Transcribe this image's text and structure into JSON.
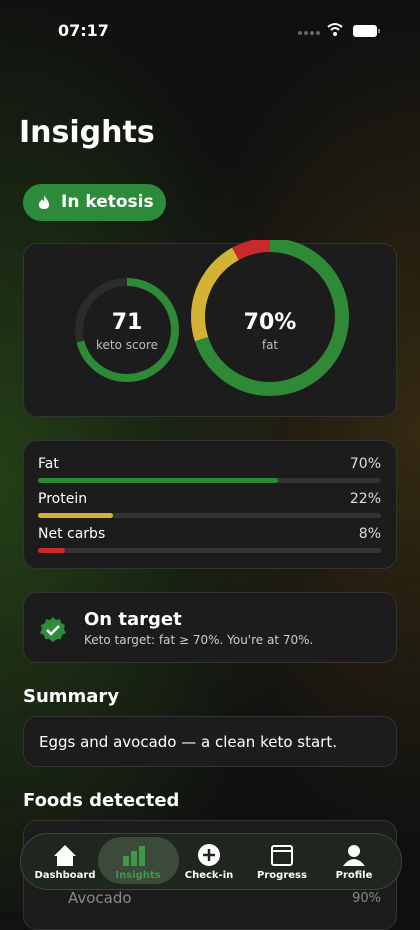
{
  "status_bar": {
    "time": "07:17"
  },
  "header": {
    "title": "Insights",
    "badge": "In ketosis"
  },
  "score": {
    "value": 71,
    "label": "keto score"
  },
  "fat_ring": {
    "value_label": "70%",
    "label": "fat"
  },
  "macros": [
    {
      "name": "Fat",
      "value": 70,
      "label": "70%",
      "color": "#2f8a37"
    },
    {
      "name": "Protein",
      "value": 22,
      "label": "22%",
      "color": "#d4b234"
    },
    {
      "name": "Net carbs",
      "value": 8,
      "label": "8%",
      "color": "#c8292a"
    }
  ],
  "target": {
    "title": "On target",
    "text": "Keto target: fat ≥ 70%. You're at 70%."
  },
  "summary": {
    "heading": "Summary",
    "text": "Eggs and avocado — a clean keto start."
  },
  "foods": {
    "heading": "Foods detected",
    "items": [
      {
        "name": "Avocado",
        "label": "90%"
      }
    ]
  },
  "tabs": [
    "Dashboard",
    "Insights",
    "Check-in",
    "Progress",
    "Profile"
  ]
}
